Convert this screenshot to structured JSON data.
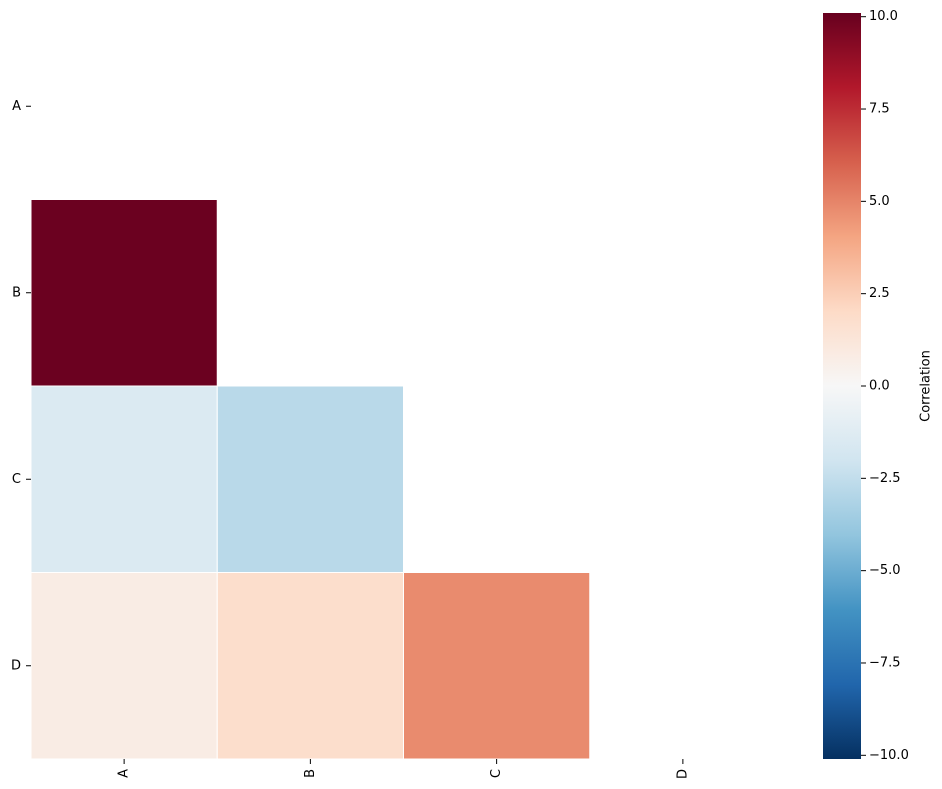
{
  "chart_data": {
    "type": "heatmap",
    "x_categories": [
      "A",
      "B",
      "C",
      "D"
    ],
    "y_categories": [
      "A",
      "B",
      "C",
      "D"
    ],
    "z": [
      [
        null,
        null,
        null,
        null
      ],
      [
        10,
        null,
        null,
        null
      ],
      [
        -1.5,
        -2.8,
        null,
        null
      ],
      [
        0.8,
        1.8,
        4.8,
        null
      ]
    ],
    "colormap": "RdBu_r",
    "zlim": [
      -10.1,
      10.1
    ],
    "colorbar_label": "Correlation",
    "colorbar_ticks": [
      {
        "value": -10,
        "label": "−10.0"
      },
      {
        "value": -7.5,
        "label": "−7.5"
      },
      {
        "value": -5,
        "label": "−5.0"
      },
      {
        "value": -2.5,
        "label": "−2.5"
      },
      {
        "value": 0,
        "label": "0.0"
      },
      {
        "value": 2.5,
        "label": "2.5"
      },
      {
        "value": 5,
        "label": "5.0"
      },
      {
        "value": 7.5,
        "label": "7.5"
      },
      {
        "value": 10,
        "label": "10.0"
      }
    ]
  }
}
